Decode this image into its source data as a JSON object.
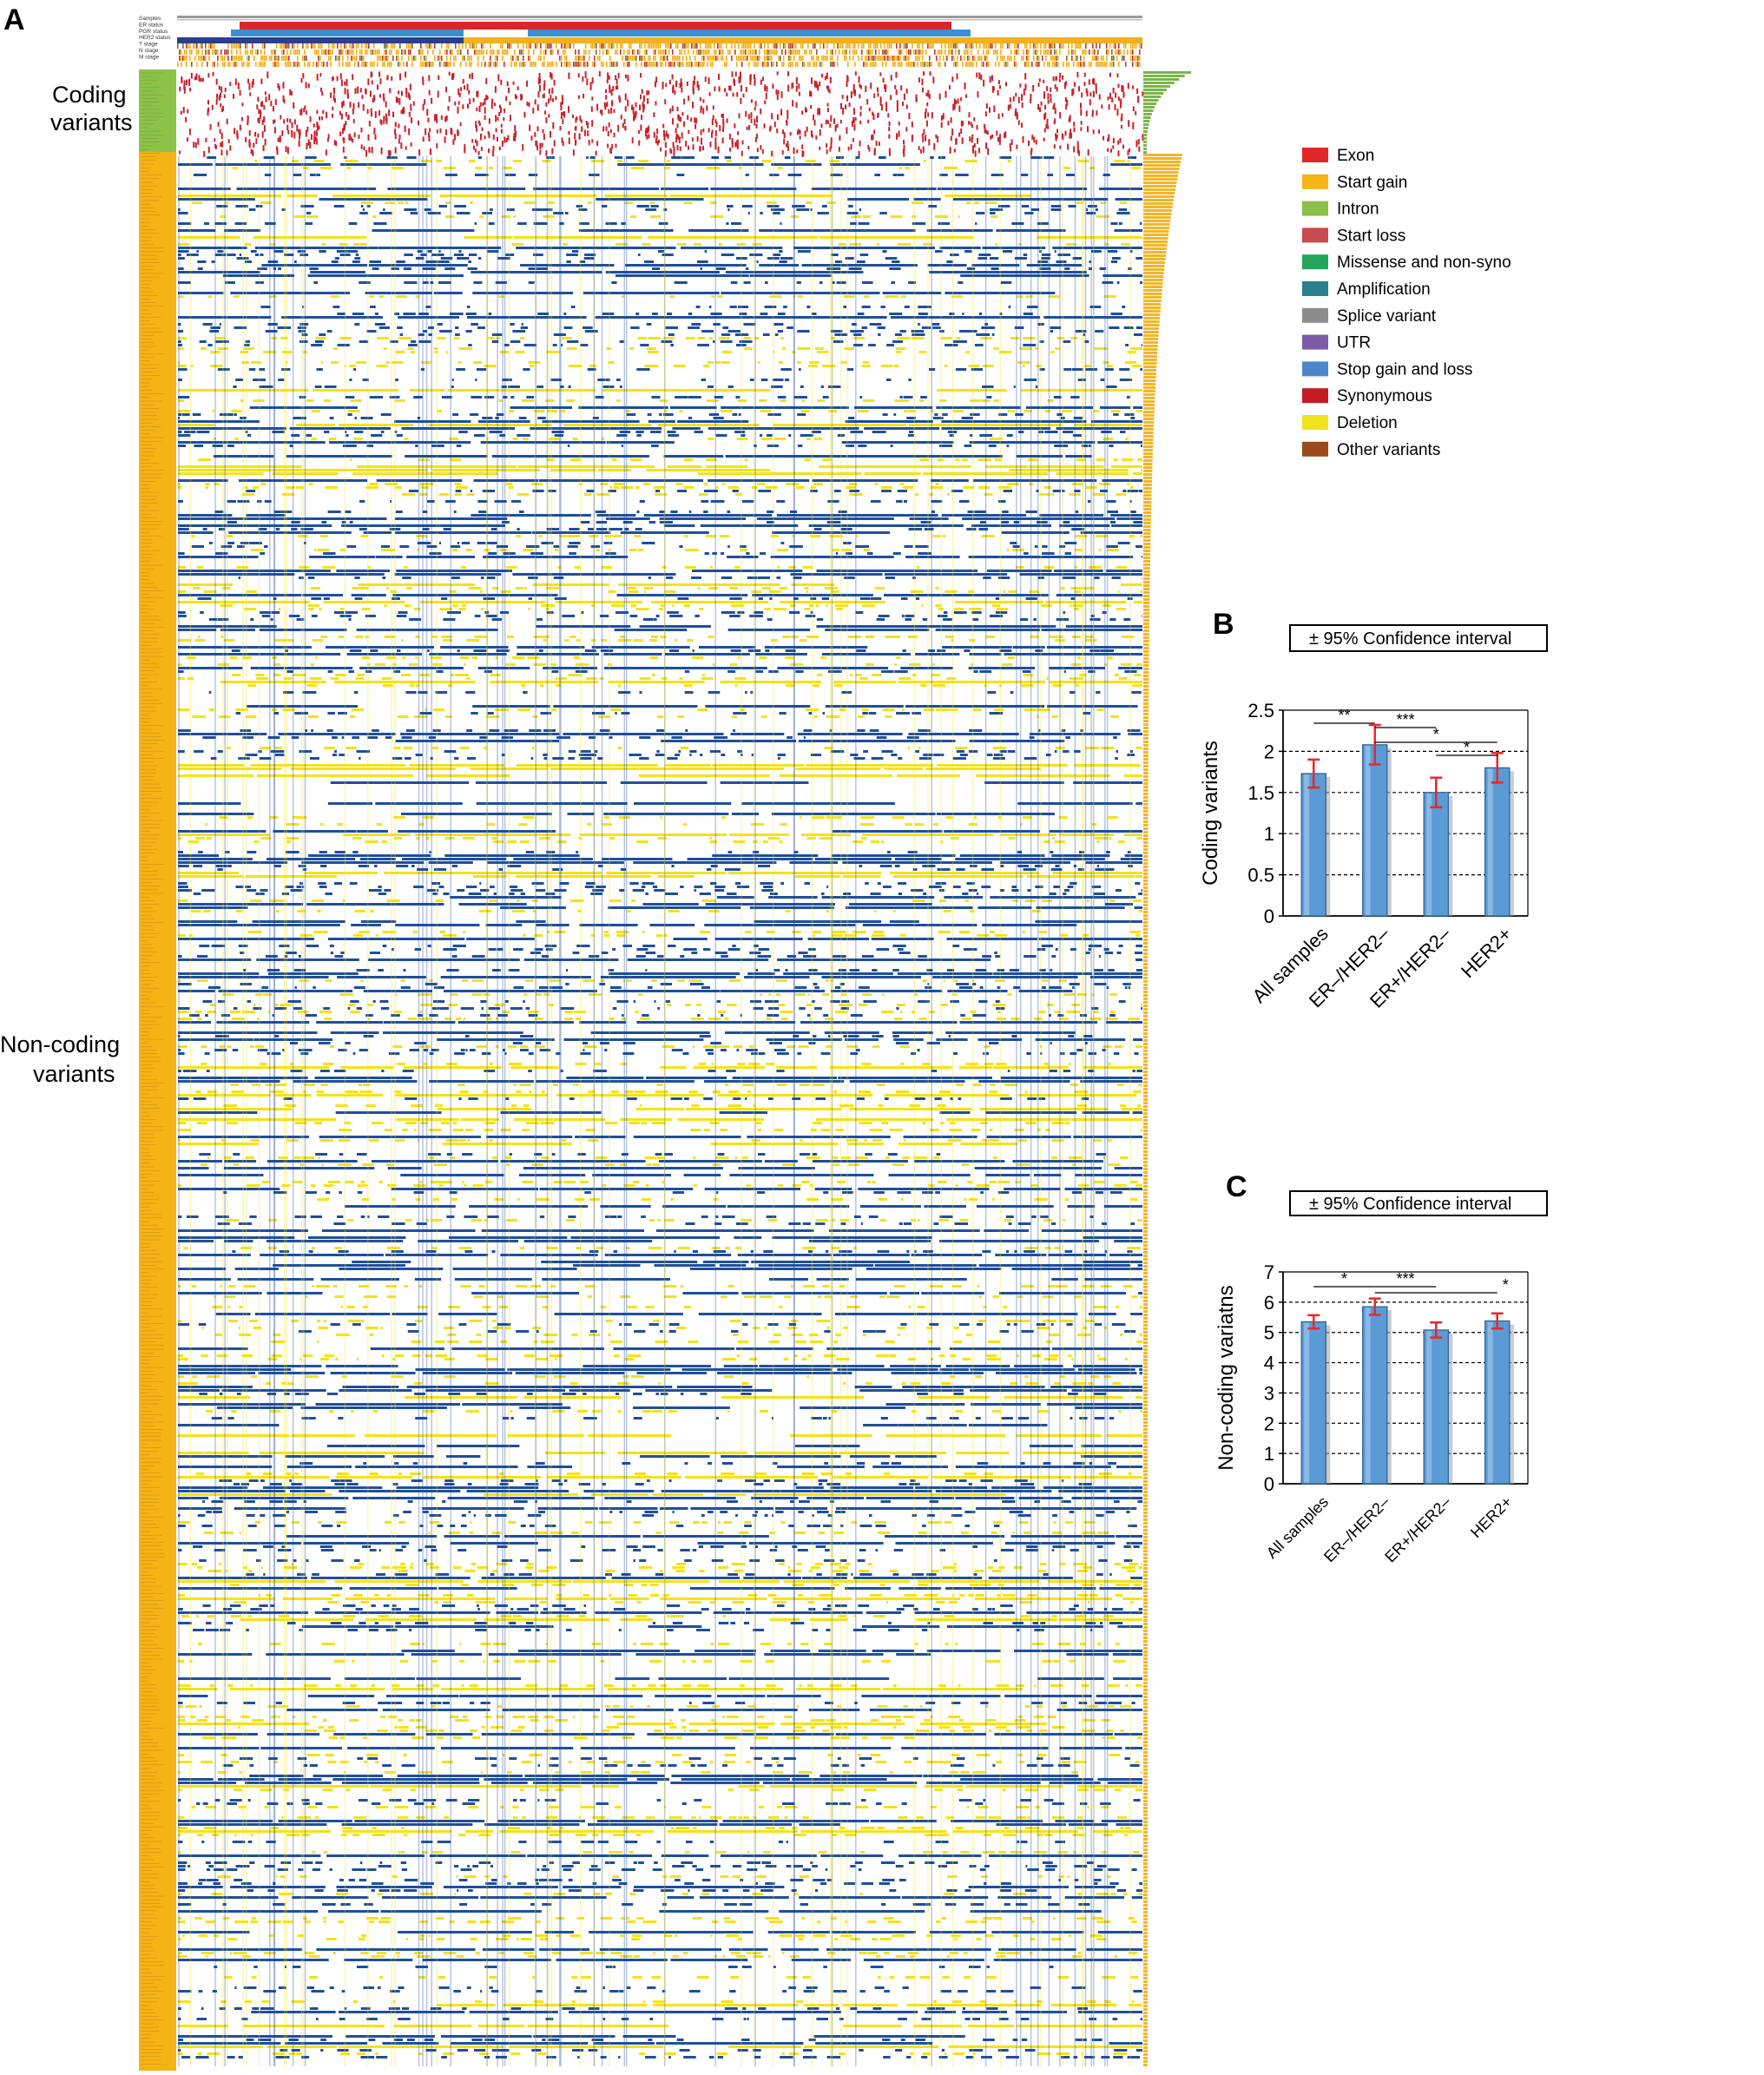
{
  "panel_a": {
    "letter": "A",
    "track_labels": [
      "Samples",
      "ER status",
      "PGR status",
      "HER2 status",
      "T stage",
      "N stage",
      "M stage"
    ],
    "row_group_labels": {
      "coding": [
        "Coding",
        "variants"
      ],
      "noncoding": [
        "Non-coding",
        "variants"
      ]
    },
    "colors": {
      "sample_track": "#9a9a9a",
      "er_pos": "#d9252b",
      "pgr_pos": "#3b8fd0",
      "her2": "#d9252b",
      "stage": "#f2b01e",
      "coding_sidebar": "#8bc34a",
      "noncoding_sidebar": "#f6b315",
      "coding_mark": "#c8232b",
      "amplification": "#1f4e9c",
      "deletion": "#f4e21a",
      "freq_coding": "#7ab648",
      "freq_noncoding": "#f4b52a"
    },
    "legend": [
      {
        "label": "Exon",
        "color": "#e0282b"
      },
      {
        "label": "Start gain",
        "color": "#f5b417"
      },
      {
        "label": "Intron",
        "color": "#8dc04a"
      },
      {
        "label": "Start loss",
        "color": "#c94a4f"
      },
      {
        "label": "Missense and non-syno",
        "color": "#25a55a"
      },
      {
        "label": "Amplification",
        "color": "#2b7f8e"
      },
      {
        "label": "Splice variant",
        "color": "#8c8c8c"
      },
      {
        "label": "UTR",
        "color": "#7c5ba8"
      },
      {
        "label": "Stop gain and loss",
        "color": "#4a86c8"
      },
      {
        "label": "Synonymous",
        "color": "#c21b22"
      },
      {
        "label": "Deletion",
        "color": "#f2e21c"
      },
      {
        "label": "Other variants",
        "color": "#9c4a1c"
      }
    ]
  },
  "chart_data": [
    {
      "panel": "B",
      "type": "bar",
      "ci_label": "± 95% Confidence interval",
      "categories": [
        "All samples",
        "ER–/HER2–",
        "ER+/HER2–",
        "HER2+"
      ],
      "values": [
        1.73,
        2.08,
        1.5,
        1.8
      ],
      "ci": [
        0.17,
        0.24,
        0.18,
        0.18
      ],
      "ylabel": "Coding variants",
      "ylim": [
        0,
        2.5
      ],
      "yticks": [
        "0",
        "0.5",
        "1",
        "1.5",
        "2",
        "2.5"
      ],
      "grid": true,
      "bar_color": "#5b9bd5",
      "error_color": "#e8272b",
      "significance": [
        {
          "from": 0,
          "to": 1,
          "label": "**"
        },
        {
          "from": 1,
          "to": 2,
          "label": "***"
        },
        {
          "from": 1,
          "to": 3,
          "label": "*"
        },
        {
          "from": 2,
          "to": 3,
          "label": "*"
        }
      ]
    },
    {
      "panel": "C",
      "type": "bar",
      "ci_label": "± 95% Confidence interval",
      "categories": [
        "All samples",
        "ER–/HER2–",
        "ER+/HER2–",
        "HER2+"
      ],
      "values": [
        5.35,
        5.85,
        5.08,
        5.38
      ],
      "ci": [
        0.22,
        0.27,
        0.25,
        0.25
      ],
      "ylabel": "Non-coding variatns",
      "ylim": [
        0,
        7
      ],
      "yticks": [
        "0",
        "1",
        "2",
        "3",
        "4",
        "5",
        "6",
        "7"
      ],
      "grid": true,
      "bar_color": "#5b9bd5",
      "error_color": "#e8272b",
      "significance": [
        {
          "from": 0,
          "to": 1,
          "label": "*"
        },
        {
          "from": 1,
          "to": 2,
          "label": "***"
        },
        {
          "from": 1,
          "to": 3,
          "label": "*"
        }
      ]
    }
  ]
}
